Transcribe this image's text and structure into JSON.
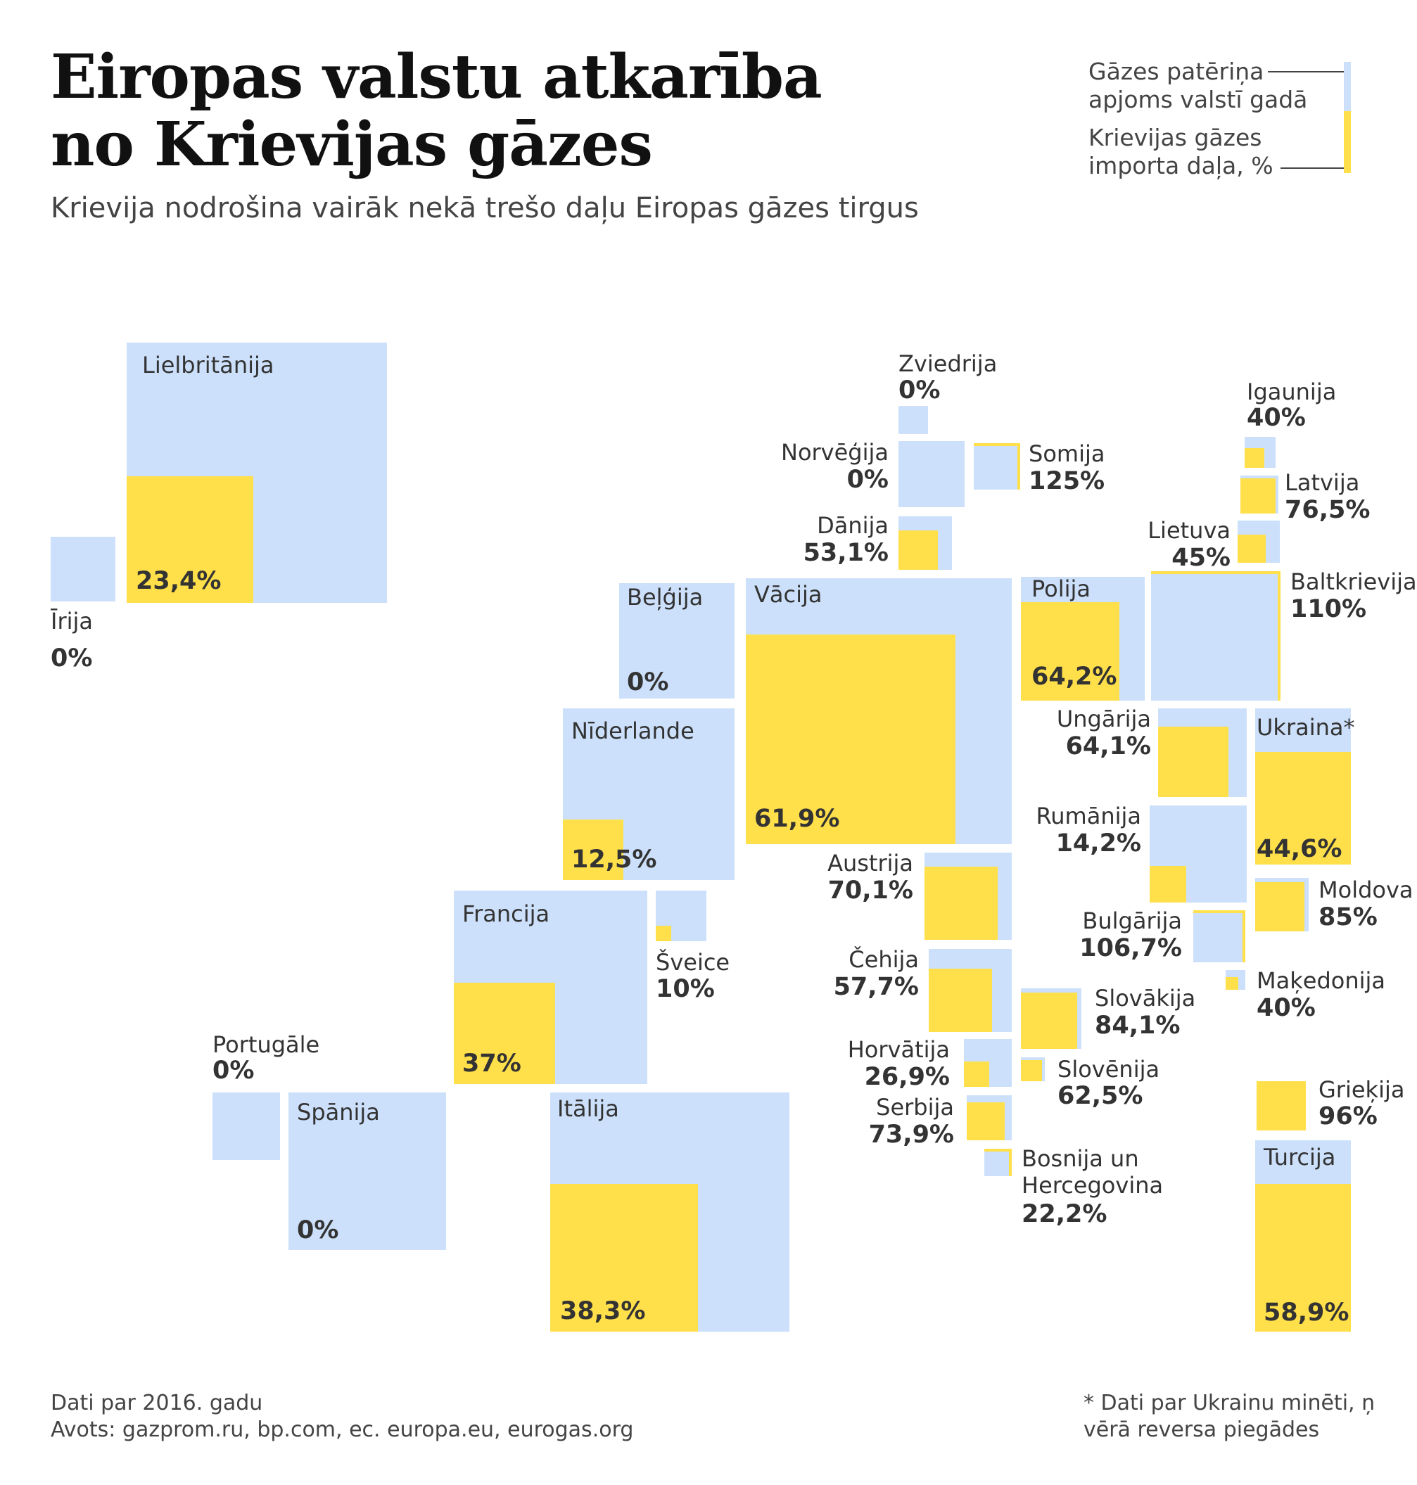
{
  "title": [
    "Eiropas valstu atkarība",
    "no Krievijas gāzes"
  ],
  "subtitle": "Krievija nodrošina vairāk nekā trešo daļu Eiropas gāzes tirgus",
  "legend": {
    "consumption": [
      "Gāzes patēriņa",
      "apjoms valstī gadā"
    ],
    "import_share": [
      "Krievijas gāzes",
      "importa daļa, %"
    ]
  },
  "colors": {
    "consumption": "#cce0fb",
    "russian_share": "#ffdf4a"
  },
  "footer": {
    "left": [
      "Dati par 2016. gadu",
      "Avots: gazprom.ru, bp.com, ec. europa.eu, eurogas.org"
    ],
    "right": [
      "* Dati par Ukrainu minēti, ņ",
      "vērā reversa piegādes"
    ]
  },
  "countries": [
    {
      "name": "Lielbritānija",
      "value": "23,4%",
      "share": 23.4
    },
    {
      "name": "Īrija",
      "value": "0%",
      "share": 0
    },
    {
      "name": "Zviedrija",
      "value": "0%",
      "share": 0
    },
    {
      "name": "Norvēģija",
      "value": "0%",
      "share": 0
    },
    {
      "name": "Somija",
      "value": "125%",
      "share": 125
    },
    {
      "name": "Dānija",
      "value": "53,1%",
      "share": 53.1
    },
    {
      "name": "Igaunija",
      "value": "40%",
      "share": 40
    },
    {
      "name": "Latvija",
      "value": "76,5%",
      "share": 76.5
    },
    {
      "name": "Lietuva",
      "value": "45%",
      "share": 45
    },
    {
      "name": "Baltkrievija",
      "value": "110%",
      "share": 110
    },
    {
      "name": "Beļģija",
      "value": "0%",
      "share": 0
    },
    {
      "name": "Vācija",
      "value": "61,9%",
      "share": 61.9
    },
    {
      "name": "Polija",
      "value": "64,2%",
      "share": 64.2
    },
    {
      "name": "Nīderlande",
      "value": "12,5%",
      "share": 12.5
    },
    {
      "name": "Ungārija",
      "value": "64,1%",
      "share": 64.1
    },
    {
      "name": "Ukraina*",
      "value": "44,6%",
      "share": 44.6
    },
    {
      "name": "Rumānija",
      "value": "14,2%",
      "share": 14.2
    },
    {
      "name": "Austrija",
      "value": "70,1%",
      "share": 70.1
    },
    {
      "name": "Moldova",
      "value": "85%",
      "share": 85
    },
    {
      "name": "Francija",
      "value": "37%",
      "share": 37
    },
    {
      "name": "Šveice",
      "value": "10%",
      "share": 10
    },
    {
      "name": "Bulgārija",
      "value": "106,7%",
      "share": 106.7
    },
    {
      "name": "Čehija",
      "value": "57,7%",
      "share": 57.7
    },
    {
      "name": "Maķedonija",
      "value": "40%",
      "share": 40
    },
    {
      "name": "Slovākija",
      "value": "84,1%",
      "share": 84.1
    },
    {
      "name": "Portugāle",
      "value": "0%",
      "share": 0
    },
    {
      "name": "Horvātija",
      "value": "26,9%",
      "share": 26.9
    },
    {
      "name": "Slovēnija",
      "value": "62,5%",
      "share": 62.5
    },
    {
      "name": "Spānija",
      "value": "0%",
      "share": 0
    },
    {
      "name": "Itālija",
      "value": "38,3%",
      "share": 38.3
    },
    {
      "name": "Grieķija",
      "value": "96%",
      "share": 96
    },
    {
      "name": "Serbija",
      "value": "73,9%",
      "share": 73.9
    },
    {
      "name": "Turcija",
      "value": "58,9%",
      "share": 58.9
    },
    {
      "name": "Bosnija un Hercegovina",
      "value": "22,2%",
      "share": 22.2
    }
  ]
}
